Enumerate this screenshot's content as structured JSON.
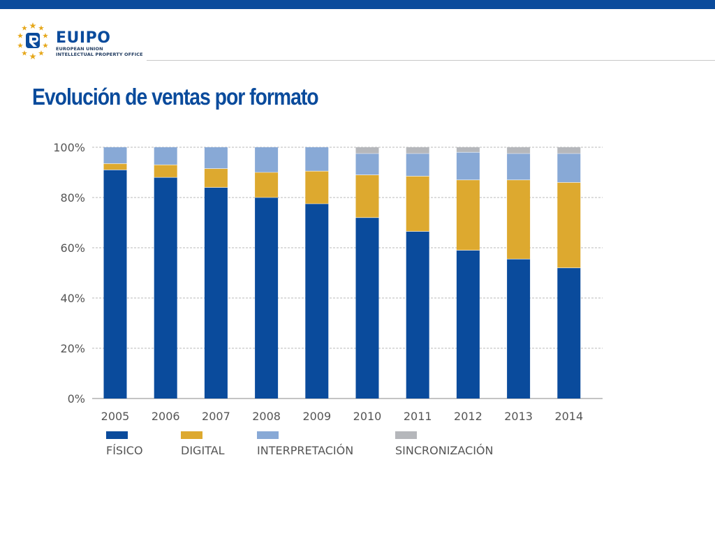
{
  "header": {
    "brand_eu": "EU",
    "brand_ipo": "IPO",
    "org_line1": "EUROPEAN UNION",
    "org_line2": "INTELLECTUAL PROPERTY OFFICE"
  },
  "colors": {
    "topbar": "#0a4b9c",
    "fisico": "#0a4b9c",
    "digital": "#dda92f",
    "interpretacion": "#88a9d6",
    "sincronizacion": "#b5b7bb"
  },
  "slide": {
    "title": "Evolución de ventas por formato"
  },
  "chart_data": {
    "type": "bar",
    "stacked": true,
    "categories": [
      "2005",
      "2006",
      "2007",
      "2008",
      "2009",
      "2010",
      "2011",
      "2012",
      "2013",
      "2014"
    ],
    "ylim": [
      0,
      100
    ],
    "yticks": [
      "0%",
      "20%",
      "40%",
      "60%",
      "80%",
      "100%"
    ],
    "grid": true,
    "legend_position": "bottom",
    "series": [
      {
        "name": "FÍSICO",
        "color": "#0a4b9c",
        "values": [
          91,
          88,
          84,
          80,
          77.5,
          72,
          66.5,
          59,
          55.5,
          52
        ]
      },
      {
        "name": "DIGITAL",
        "color": "#dda92f",
        "values": [
          2.5,
          5,
          7.5,
          10,
          13,
          17,
          22,
          28,
          31.5,
          34
        ]
      },
      {
        "name": "INTERPRETACIÓN",
        "color": "#88a9d6",
        "values": [
          6.5,
          7,
          8.5,
          10,
          9.5,
          8.5,
          9,
          11,
          10.5,
          11.5
        ]
      },
      {
        "name": "SINCRONIZACIÓN",
        "color": "#b5b7bb",
        "values": [
          0,
          0,
          0,
          0,
          0,
          2.5,
          2.5,
          2,
          2.5,
          2.5
        ]
      }
    ]
  }
}
